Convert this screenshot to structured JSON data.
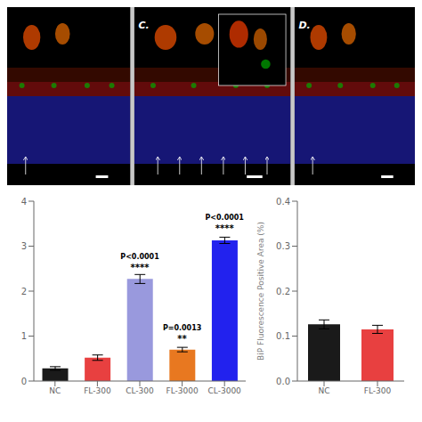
{
  "chart_data": [
    {
      "type": "image",
      "annotations": [
        {
          "text": "C.",
          "panel": 1
        },
        {
          "text": "D.",
          "panel": 2
        }
      ]
    },
    {
      "type": "bar",
      "categories": [
        "NC",
        "FL-300",
        "CL-300",
        "FL-3000",
        "CL-3000"
      ],
      "values": [
        0.28,
        0.52,
        2.27,
        0.7,
        3.13
      ],
      "errors": [
        0.04,
        0.06,
        0.1,
        0.05,
        0.07
      ],
      "colors": [
        "#1a1a1a",
        "#e84040",
        "#9999dd",
        "#e87820",
        "#2222ee"
      ],
      "ylim": [
        0,
        4
      ],
      "yticks": [
        0,
        1,
        2,
        3,
        4
      ],
      "annotations": [
        {
          "bar": 2,
          "text": "P<0.0001\n****",
          "y": 2.55
        },
        {
          "bar": 3,
          "text": "P=0.0013\n**",
          "y": 0.98
        },
        {
          "bar": 4,
          "text": "P<0.0001\n****",
          "y": 3.42
        }
      ]
    },
    {
      "type": "bar",
      "categories": [
        "NC",
        "FL-300"
      ],
      "values": [
        0.126,
        0.115
      ],
      "errors": [
        0.01,
        0.009
      ],
      "colors": [
        "#1a1a1a",
        "#e84040"
      ],
      "ylim": [
        0,
        0.4
      ],
      "yticks": [
        {
          "value": 0,
          "label": "0.0"
        },
        0.1,
        0.2,
        0.3,
        0.4
      ],
      "ylabel": "BiP Fluorescence Positive Area (%)"
    }
  ]
}
